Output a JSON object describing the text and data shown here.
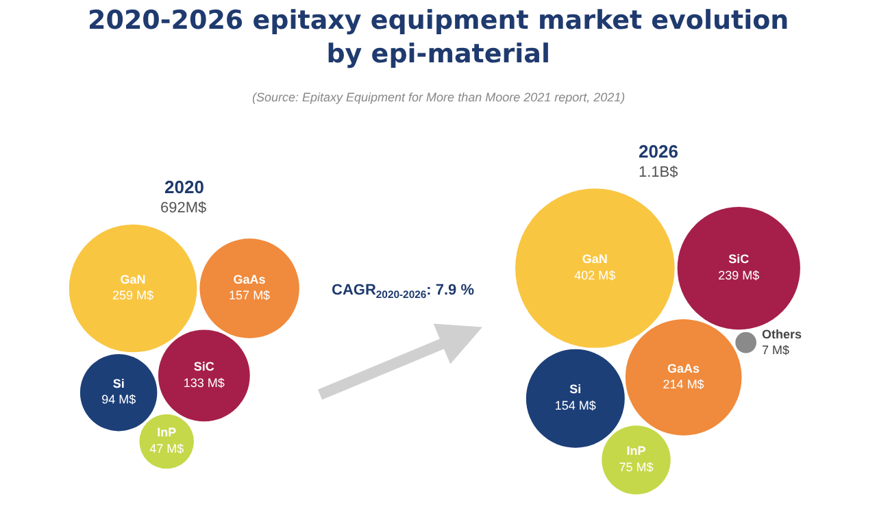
{
  "chart_data": [
    {
      "type": "other",
      "title": "2020-2026 epitaxy equipment market evolution by epi-material",
      "subtitle": "(Source: Epitaxy Equipment for More than Moore 2021 report, 2021)",
      "annotations": [
        "CAGR$_{2020-2026}$: 7.9 %"
      ]
    },
    {
      "type": "other",
      "title": "2020",
      "subtitle": "692M$",
      "categories": [
        "GaN",
        "GaAs",
        "SiC",
        "Si",
        "InP"
      ],
      "values": [
        259,
        157,
        133,
        94,
        47
      ],
      "colors": [
        "#f9c642",
        "#f08a3c",
        "#a51f4a",
        "#1c3f78",
        "#c5d84a"
      ],
      "value_labels": [
        "259 M$",
        "157 M$",
        "133 M$",
        "94 M$",
        "47 M$"
      ]
    },
    {
      "type": "other",
      "title": "2026",
      "subtitle": "1.1B$",
      "categories": [
        "GaN",
        "SiC",
        "GaAs",
        "Si",
        "InP",
        "Others"
      ],
      "values": [
        402,
        239,
        214,
        154,
        75,
        7
      ],
      "colors": [
        "#f9c642",
        "#a51f4a",
        "#f08a3c",
        "#1c3f78",
        "#c5d84a",
        "#8a8a8a"
      ],
      "value_labels": [
        "402 M$",
        "239 M$",
        "214 M$",
        "154 M$",
        "75 M$",
        "7 M$"
      ]
    }
  ]
}
